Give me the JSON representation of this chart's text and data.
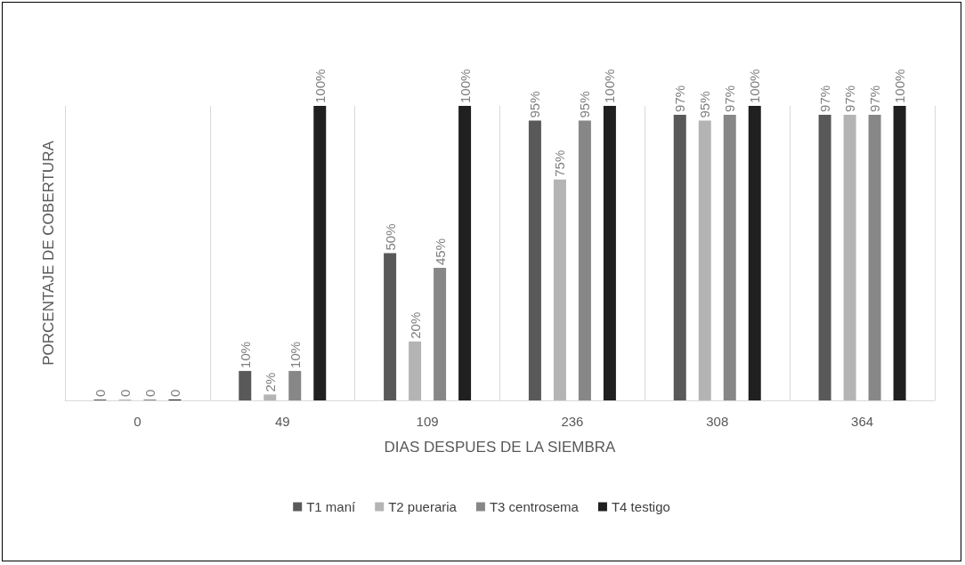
{
  "chart_data": {
    "type": "bar",
    "xlabel": "DIAS DESPUES DE LA SIEMBRA",
    "ylabel": "PORCENTAJE DE COBERTURA",
    "categories": [
      "0",
      "49",
      "109",
      "236",
      "308",
      "364"
    ],
    "series": [
      {
        "name": "T1 maní",
        "color": "#595959",
        "values": [
          0,
          10,
          50,
          95,
          97,
          97
        ],
        "value_labels": [
          "0",
          "10%",
          "50%",
          "95%",
          "97%",
          "97%"
        ]
      },
      {
        "name": "T2 pueraria",
        "color": "#b4b4b4",
        "values": [
          0,
          2,
          20,
          75,
          95,
          97
        ],
        "value_labels": [
          "0",
          "2%",
          "20%",
          "75%",
          "95%",
          "97%"
        ]
      },
      {
        "name": "T3 centrosema",
        "color": "#878787",
        "values": [
          0,
          10,
          45,
          95,
          97,
          97
        ],
        "value_labels": [
          "0",
          "10%",
          "45%",
          "95%",
          "97%",
          "97%"
        ]
      },
      {
        "name": "T4 testigo",
        "color": "#202020",
        "values": [
          0,
          100,
          100,
          100,
          100,
          100
        ],
        "value_labels": [
          "0",
          "100%",
          "100%",
          "100%",
          "100%",
          "100%"
        ]
      }
    ],
    "grid": "x",
    "legend": "bottom"
  }
}
